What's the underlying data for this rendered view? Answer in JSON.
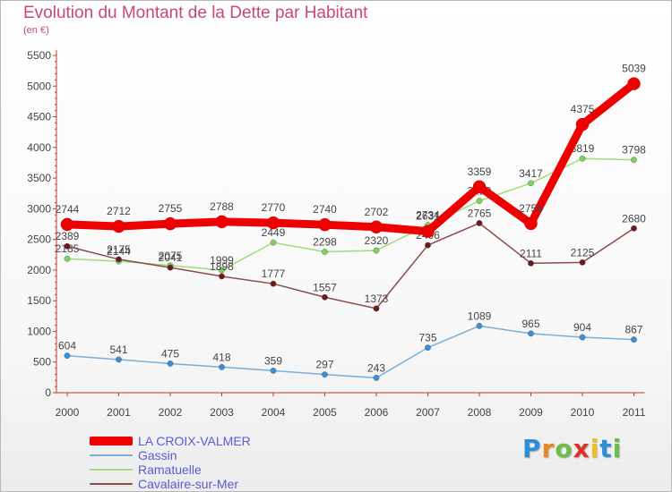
{
  "title": "Evolution du Montant de la Dette par Habitant",
  "subtitle": "(en €)",
  "logo": {
    "letters": [
      "P",
      "r",
      "o",
      "x",
      "i",
      "t",
      "i"
    ],
    "colors": [
      "#2b8ed6",
      "#e58a1e",
      "#6abd45",
      "#e0302a",
      "#f0c020",
      "#2b8ed6",
      "#6abd45"
    ]
  },
  "colors": {
    "title": "#c9477a",
    "axis": "#c0392b",
    "legend_text": "#5a5ad6"
  },
  "chart_data": {
    "type": "line",
    "title": "Evolution du Montant de la Dette par Habitant",
    "subtitle": "(en €)",
    "xlabel": "",
    "ylabel": "",
    "ylim": [
      0,
      5500
    ],
    "yticks": [
      0,
      500,
      1000,
      1500,
      2000,
      2500,
      3000,
      3500,
      4000,
      4500,
      5000,
      5500
    ],
    "categories": [
      "2000",
      "2001",
      "2002",
      "2003",
      "2004",
      "2005",
      "2006",
      "2007",
      "2008",
      "2009",
      "2010",
      "2011"
    ],
    "grid": false,
    "legend_position": "bottom-left",
    "series": [
      {
        "name": "LA CROIX-VALMER",
        "color": "#ee0000",
        "marker": "#ee0000",
        "thick": true,
        "values": [
          2744,
          2712,
          2755,
          2788,
          2770,
          2740,
          2702,
          2631,
          3359,
          2758,
          4375,
          5039
        ]
      },
      {
        "name": "Gassin",
        "color": "#7aaed8",
        "marker": "#3a8fd8",
        "thick": false,
        "values": [
          604,
          541,
          475,
          418,
          359,
          297,
          243,
          735,
          1089,
          965,
          904,
          867
        ]
      },
      {
        "name": "Ramatuelle",
        "color": "#9edc7c",
        "marker": "#7fd35a",
        "thick": false,
        "values": [
          2185,
          2144,
          2075,
          1999,
          2449,
          2298,
          2320,
          2734,
          3129,
          3417,
          3819,
          3798
        ]
      },
      {
        "name": "Cavalaire-sur-Mer",
        "color": "#8e4a4a",
        "marker": "#6b1a1a",
        "thick": false,
        "values": [
          2389,
          2175,
          2041,
          1898,
          1777,
          1557,
          1373,
          2406,
          2765,
          2111,
          2125,
          2680
        ]
      }
    ]
  }
}
